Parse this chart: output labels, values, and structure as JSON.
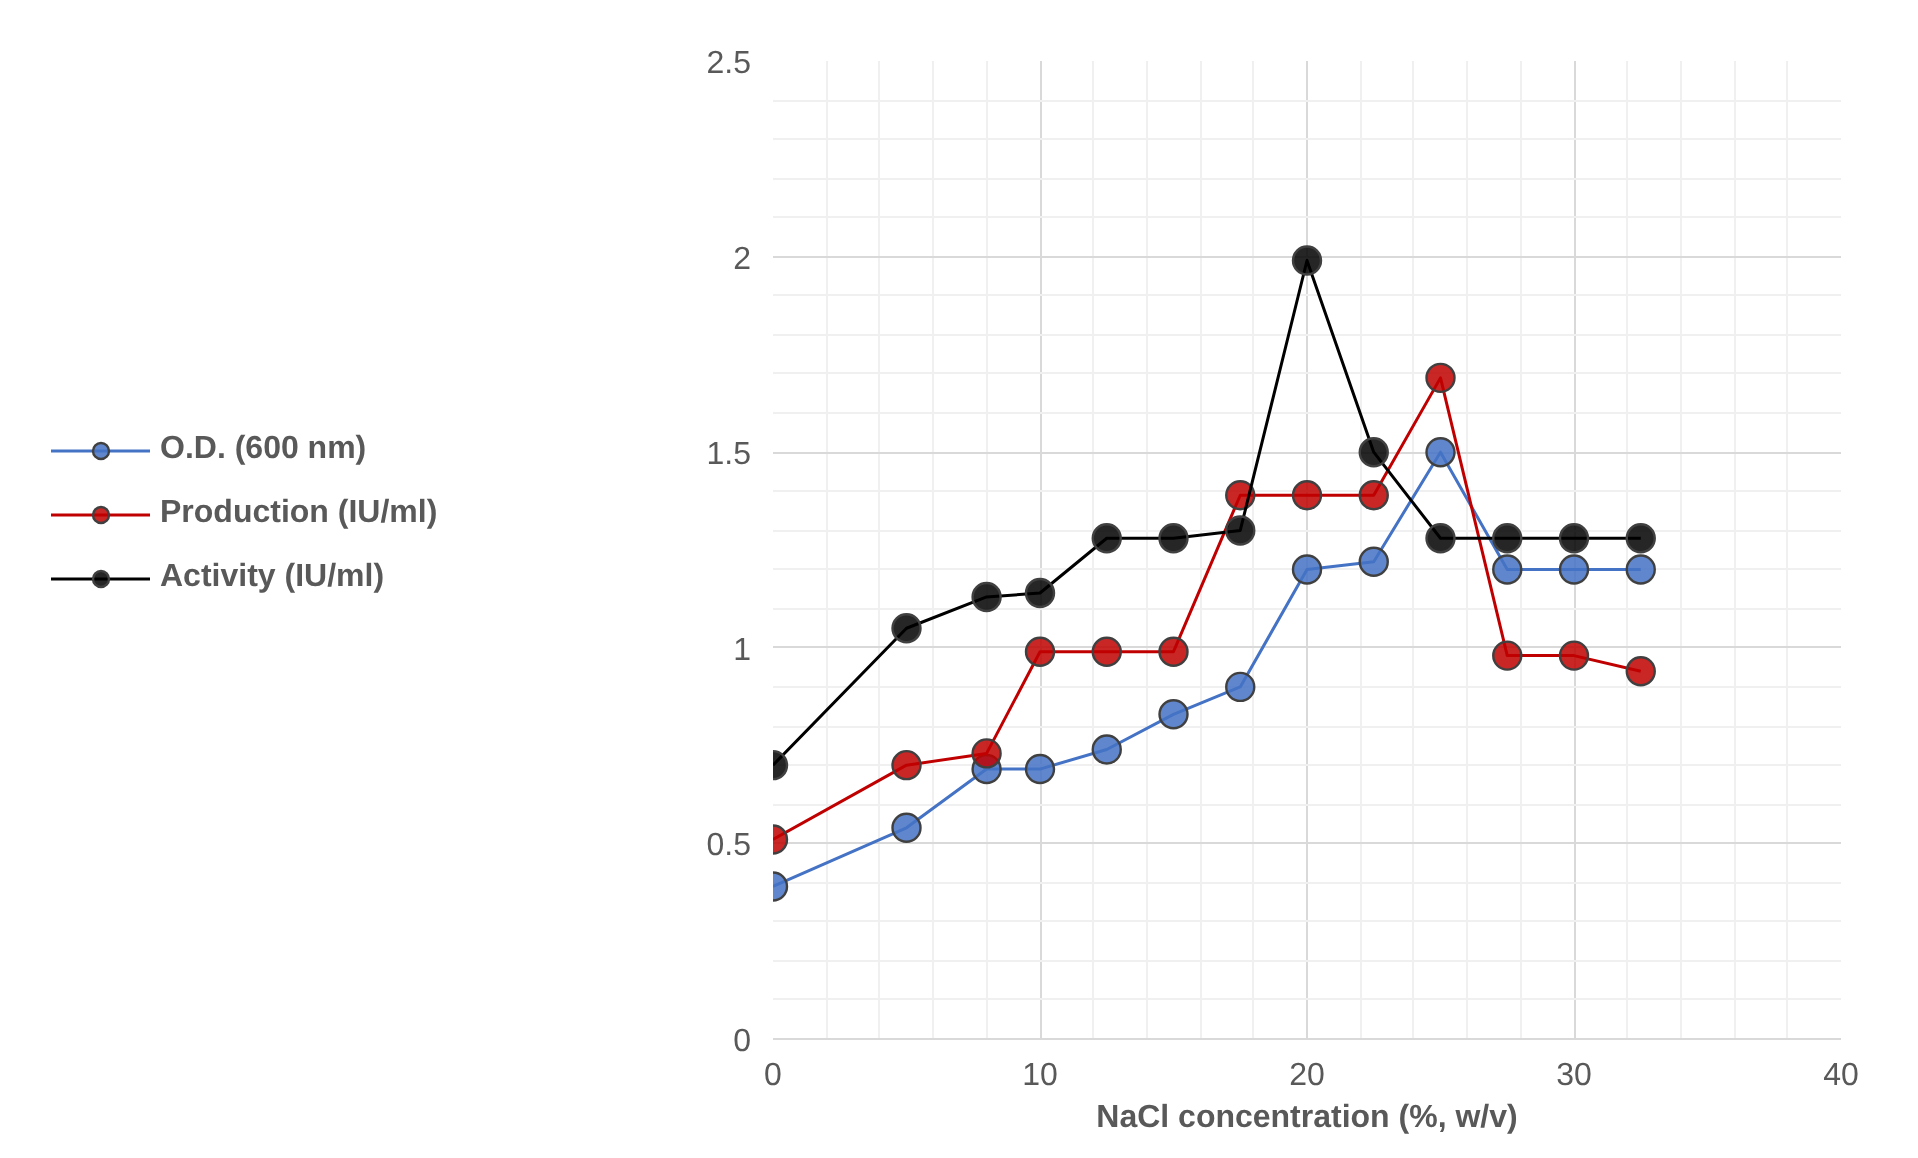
{
  "chart_data": {
    "type": "line",
    "xlabel": "NaCl concentration (%, w/v)",
    "x": [
      0,
      5,
      8,
      10,
      12.5,
      15,
      17.5,
      20,
      22.5,
      25,
      27.5,
      30,
      32.5
    ],
    "series": [
      {
        "name": "O.D. (600 nm)",
        "color": "#4472c4",
        "values": [
          0.39,
          0.54,
          0.69,
          0.69,
          0.74,
          0.83,
          0.9,
          1.2,
          1.22,
          1.5,
          1.2,
          1.2,
          1.2
        ]
      },
      {
        "name": "Production (IU/ml)",
        "color": "#c00000",
        "values": [
          0.51,
          0.7,
          0.73,
          0.99,
          0.99,
          0.99,
          1.39,
          1.39,
          1.39,
          1.69,
          0.98,
          0.98,
          0.94
        ]
      },
      {
        "name": "Activity (IU/ml)",
        "color": "#000000",
        "values": [
          0.7,
          1.05,
          1.13,
          1.14,
          1.28,
          1.28,
          1.3,
          1.99,
          1.5,
          1.28,
          1.28,
          1.28,
          1.28
        ]
      }
    ],
    "xlim": [
      0,
      40
    ],
    "xticks": [
      0,
      10,
      20,
      30,
      40
    ],
    "ylim": [
      0,
      2.5
    ],
    "yticks": [
      0,
      0.5,
      1,
      1.5,
      2,
      2.5
    ],
    "grid": true,
    "legend": "left",
    "marker": "circle",
    "line_style": "solid"
  }
}
